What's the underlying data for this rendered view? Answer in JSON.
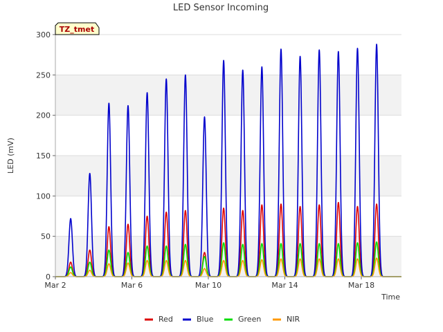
{
  "chart_data": {
    "type": "line",
    "title": "LED Sensor Incoming",
    "xlabel": "Time",
    "ylabel": "LED (mV)",
    "ylim": [
      0,
      300
    ],
    "yticks": [
      0,
      50,
      100,
      150,
      200,
      250,
      300
    ],
    "xlim_days": [
      0,
      18.1
    ],
    "x_origin": "Mar 2",
    "xticks": [
      {
        "day": 0,
        "label": "Mar 2"
      },
      {
        "day": 4,
        "label": "Mar 6"
      },
      {
        "day": 8,
        "label": "Mar 10"
      },
      {
        "day": 12,
        "label": "Mar 14"
      },
      {
        "day": 16,
        "label": "Mar 18"
      }
    ],
    "badge": "TZ_tmet",
    "day_centers": [
      0.8,
      1.8,
      2.8,
      3.8,
      4.8,
      5.8,
      6.8,
      7.8,
      8.8,
      9.8,
      10.8,
      11.8,
      12.8,
      13.8,
      14.8,
      15.8,
      16.8
    ],
    "series": [
      {
        "name": "Red",
        "color": "#dd0000",
        "daily_peaks": [
          18,
          33,
          62,
          65,
          75,
          80,
          82,
          30,
          85,
          82,
          89,
          90,
          87,
          89,
          92,
          87,
          90
        ]
      },
      {
        "name": "Blue",
        "color": "#0000cc",
        "daily_peaks": [
          72,
          128,
          215,
          212,
          228,
          245,
          250,
          198,
          268,
          256,
          260,
          282,
          273,
          281,
          279,
          283,
          288
        ]
      },
      {
        "name": "Green",
        "color": "#00dd00",
        "daily_peaks": [
          12,
          18,
          33,
          30,
          38,
          38,
          40,
          25,
          42,
          40,
          41,
          41,
          41,
          41,
          41,
          42,
          43
        ]
      },
      {
        "name": "NIR",
        "color": "#ff9900",
        "daily_peaks": [
          5,
          8,
          16,
          17,
          20,
          20,
          20,
          10,
          20,
          20,
          21,
          22,
          22,
          22,
          22,
          22,
          23
        ]
      }
    ]
  }
}
